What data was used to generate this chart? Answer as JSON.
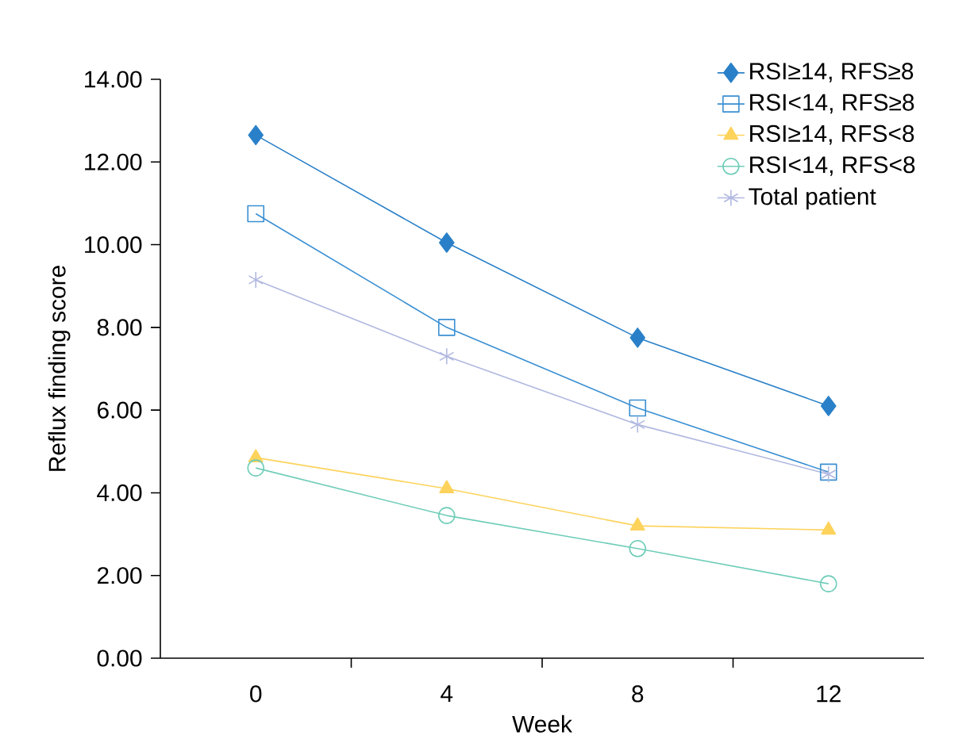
{
  "chart_data": {
    "type": "line",
    "xlabel": "Week",
    "ylabel": "Reflux finding score",
    "categories": [
      "0",
      "4",
      "8",
      "12"
    ],
    "ylim": [
      0,
      14
    ],
    "yticks": [
      {
        "value": 0,
        "label": "0.00"
      },
      {
        "value": 2,
        "label": "2.00"
      },
      {
        "value": 4,
        "label": "4.00"
      },
      {
        "value": 6,
        "label": "6.00"
      },
      {
        "value": 8,
        "label": "8.00"
      },
      {
        "value": 10,
        "label": "10.00"
      },
      {
        "value": 12,
        "label": "12.00"
      },
      {
        "value": 14,
        "label": "14.00"
      }
    ],
    "grid": false,
    "legend": "top right",
    "line_style": "solid",
    "series": [
      {
        "name": "RSI≥14, RFS≥8",
        "color": "#2a80c8",
        "marker": "diamond",
        "values": [
          12.65,
          10.05,
          7.75,
          6.1
        ]
      },
      {
        "name": "RSI<14, RFS≥8",
        "color": "#3a8fd2",
        "marker": "square",
        "values": [
          10.75,
          8.0,
          6.05,
          4.5
        ]
      },
      {
        "name": "RSI≥14, RFS<8",
        "color": "#fdd35c",
        "marker": "triangle",
        "values": [
          4.85,
          4.1,
          3.2,
          3.1
        ]
      },
      {
        "name": "RSI<14, RFS<8",
        "color": "#6fcdb8",
        "marker": "circle",
        "values": [
          4.6,
          3.45,
          2.65,
          1.8
        ]
      },
      {
        "name": "Total patient",
        "color": "#b0b8e0",
        "marker": "cross",
        "values": [
          9.15,
          7.3,
          5.65,
          4.45
        ]
      }
    ]
  }
}
